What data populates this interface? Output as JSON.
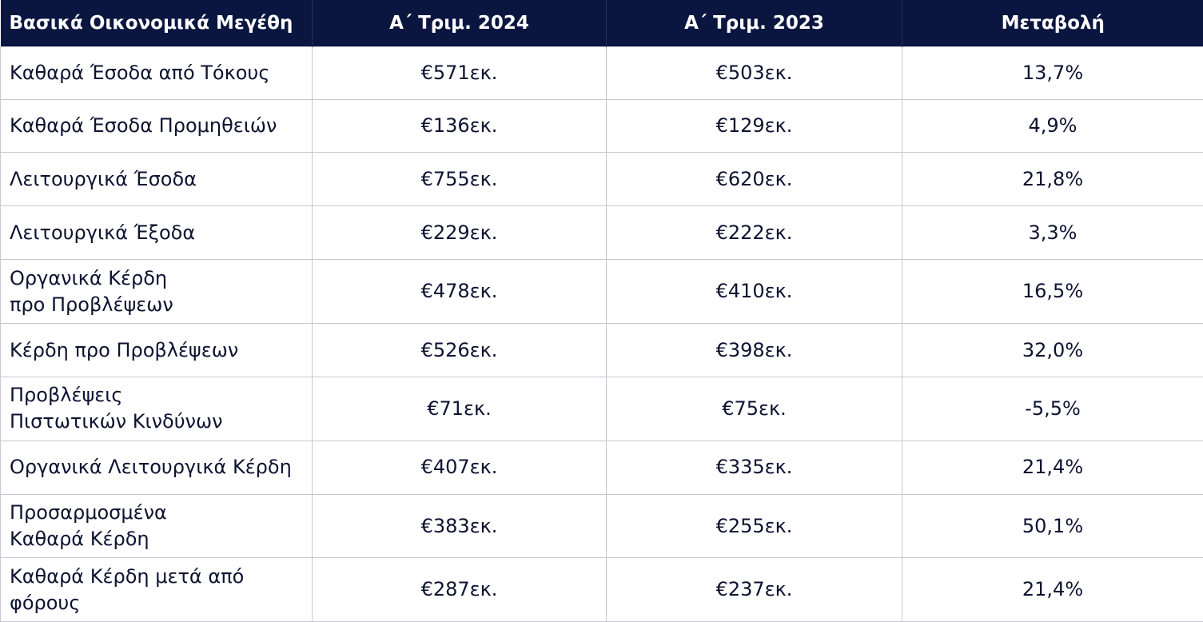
{
  "header": {
    "col1": "Βασικά Οικονομικά Μεγέθη",
    "col2": "Α΄ Τριμ. 2024",
    "col3": "Α΄ Τριμ. 2023",
    "col4": "Μεταβολή"
  },
  "rows": [
    {
      "label": "Καθαρά Έσοδα από Τόκους",
      "q2024": "€571εκ.",
      "q2023": "€503εκ.",
      "change": "13,7%"
    },
    {
      "label": "Καθαρά Έσοδα Προμηθειών",
      "q2024": "€136εκ.",
      "q2023": "€129εκ.",
      "change": "4,9%"
    },
    {
      "label": "Λειτουργικά Έσοδα",
      "q2024": "€755εκ.",
      "q2023": "€620εκ.",
      "change": "21,8%"
    },
    {
      "label": "Λειτουργικά Έξοδα",
      "q2024": "€229εκ.",
      "q2023": "€222εκ.",
      "change": "3,3%"
    },
    {
      "label": "Οργανικά Κέρδη\nπρο Προβλέψεων",
      "q2024": "€478εκ.",
      "q2023": "€410εκ.",
      "change": "16,5%"
    },
    {
      "label": "Κέρδη προ Προβλέψεων",
      "q2024": "€526εκ.",
      "q2023": "€398εκ.",
      "change": "32,0%"
    },
    {
      "label": "Προβλέψεις\nΠιστωτικών Κινδύνων",
      "q2024": "€71εκ.",
      "q2023": "€75εκ.",
      "change": "-5,5%"
    },
    {
      "label": "Οργανικά Λειτουργικά Κέρδη",
      "q2024": "€407εκ.",
      "q2023": "€335εκ.",
      "change": "21,4%"
    },
    {
      "label": "Προσαρμοσμένα\nΚαθαρά Κέρδη",
      "q2024": "€383εκ.",
      "q2023": "€255εκ.",
      "change": "50,1%"
    },
    {
      "label": "Καθαρά Κέρδη μετά από\nφόρους",
      "q2024": "€287εκ.",
      "q2023": "€237εκ.",
      "change": "21,4%"
    }
  ]
}
